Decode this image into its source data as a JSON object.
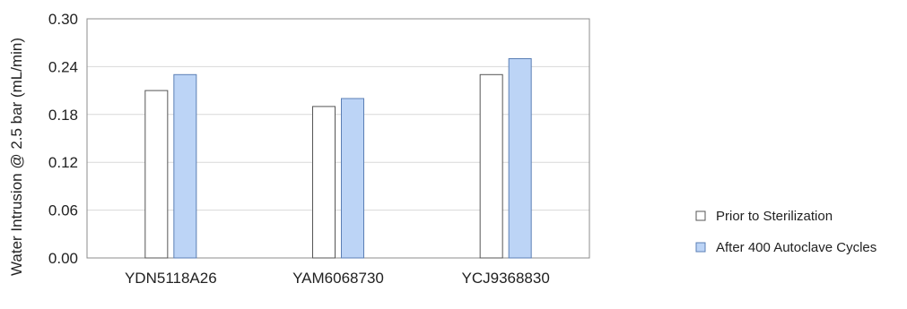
{
  "chart_data": {
    "type": "bar",
    "title": "",
    "xlabel": "",
    "ylabel": "Water Intrusion @ 2.5 bar (mL/min)",
    "ylim": [
      0,
      0.3
    ],
    "yticks": [
      "0.00",
      "0.06",
      "0.12",
      "0.18",
      "0.24",
      "0.30"
    ],
    "ytick_values": [
      0,
      0.06,
      0.12,
      0.18,
      0.24,
      0.3
    ],
    "grid": "horizontal",
    "legend_position": "right",
    "categories": [
      "YDN5118A26",
      "YAM6068730",
      "YCJ9368830"
    ],
    "series": [
      {
        "name": "Prior to Sterilization",
        "values": [
          0.21,
          0.19,
          0.23
        ],
        "color": "#ffffff",
        "edge_color": "#555555"
      },
      {
        "name": "After 400 Autoclave Cycles",
        "values": [
          0.23,
          0.2,
          0.25
        ],
        "color": "#bcd4f6",
        "edge_color": "#5b7fb5"
      }
    ]
  }
}
